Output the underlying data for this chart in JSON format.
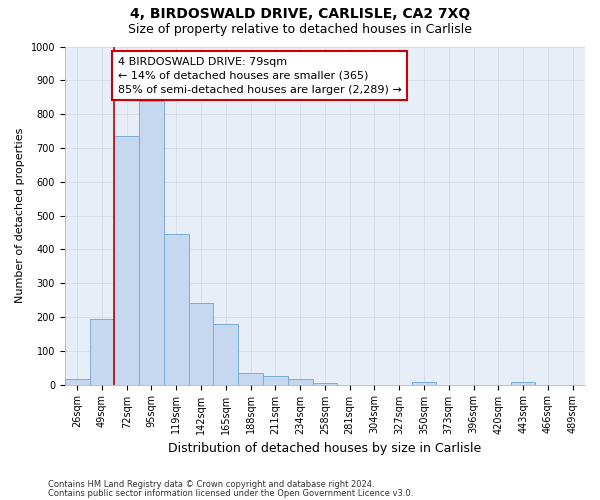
{
  "title_line1": "4, BIRDOSWALD DRIVE, CARLISLE, CA2 7XQ",
  "title_line2": "Size of property relative to detached houses in Carlisle",
  "xlabel": "Distribution of detached houses by size in Carlisle",
  "ylabel": "Number of detached properties",
  "bar_labels": [
    "26sqm",
    "49sqm",
    "72sqm",
    "95sqm",
    "119sqm",
    "142sqm",
    "165sqm",
    "188sqm",
    "211sqm",
    "234sqm",
    "258sqm",
    "281sqm",
    "304sqm",
    "327sqm",
    "350sqm",
    "373sqm",
    "396sqm",
    "420sqm",
    "443sqm",
    "466sqm",
    "489sqm"
  ],
  "bar_values": [
    15,
    195,
    735,
    840,
    445,
    242,
    178,
    35,
    25,
    15,
    5,
    0,
    0,
    0,
    8,
    0,
    0,
    0,
    8,
    0,
    0
  ],
  "bar_color": "#c5d8f0",
  "bar_edge_color": "#7aadd4",
  "ylim": [
    0,
    1000
  ],
  "yticks": [
    0,
    100,
    200,
    300,
    400,
    500,
    600,
    700,
    800,
    900,
    1000
  ],
  "vline_x": 2.0,
  "vline_color": "#cc0000",
  "annotation_text": "4 BIRDOSWALD DRIVE: 79sqm\n← 14% of detached houses are smaller (365)\n85% of semi-detached houses are larger (2,289) →",
  "footnote1": "Contains HM Land Registry data © Crown copyright and database right 2024.",
  "footnote2": "Contains public sector information licensed under the Open Government Licence v3.0.",
  "grid_color": "#d0d8e8",
  "background_color": "#e8eef8",
  "title1_fontsize": 10,
  "title2_fontsize": 9,
  "axis_label_fontsize": 8,
  "tick_fontsize": 7,
  "annotation_fontsize": 8,
  "footnote_fontsize": 6
}
